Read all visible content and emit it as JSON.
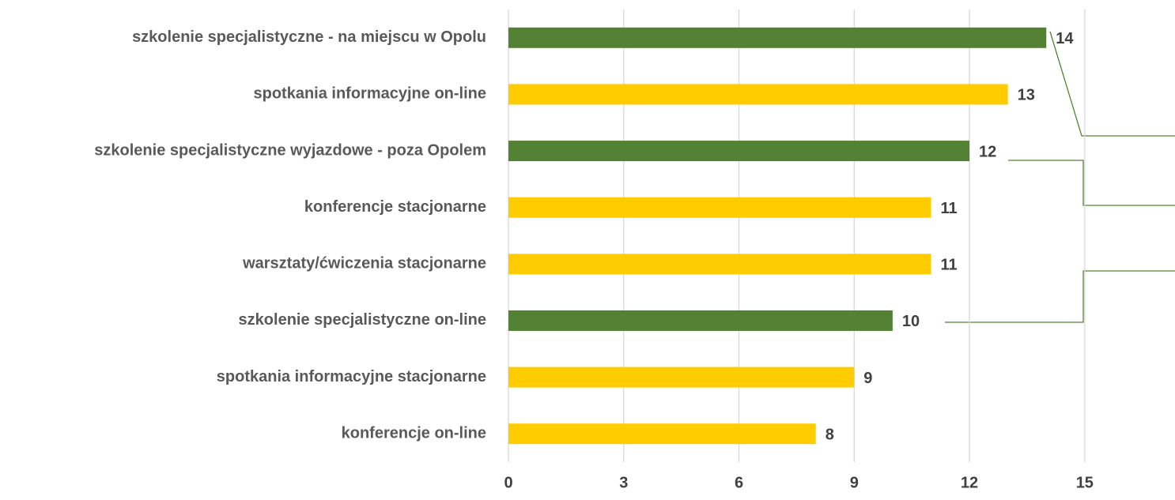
{
  "chart_data": {
    "type": "bar",
    "orientation": "horizontal",
    "categories": [
      "szkolenie specjalistyczne - na miejscu w Opolu",
      "spotkania informacyjne on-line",
      "szkolenie specjalistyczne wyjazdowe - poza Opolem",
      "konferencje stacjonarne",
      "warsztaty/ćwiczenia stacjonarne",
      "szkolenie specjalistyczne on-line",
      "spotkania informacyjne stacjonarne",
      "konferencje on-line"
    ],
    "values": [
      14,
      13,
      12,
      11,
      11,
      10,
      9,
      8
    ],
    "colors": [
      "#548235",
      "#ffcc00",
      "#548235",
      "#ffcc00",
      "#ffcc00",
      "#548235",
      "#ffcc00",
      "#ffcc00"
    ],
    "xlim": [
      0,
      17.35
    ],
    "xticks": [
      0,
      3,
      6,
      9,
      12,
      15
    ],
    "grid": true
  }
}
